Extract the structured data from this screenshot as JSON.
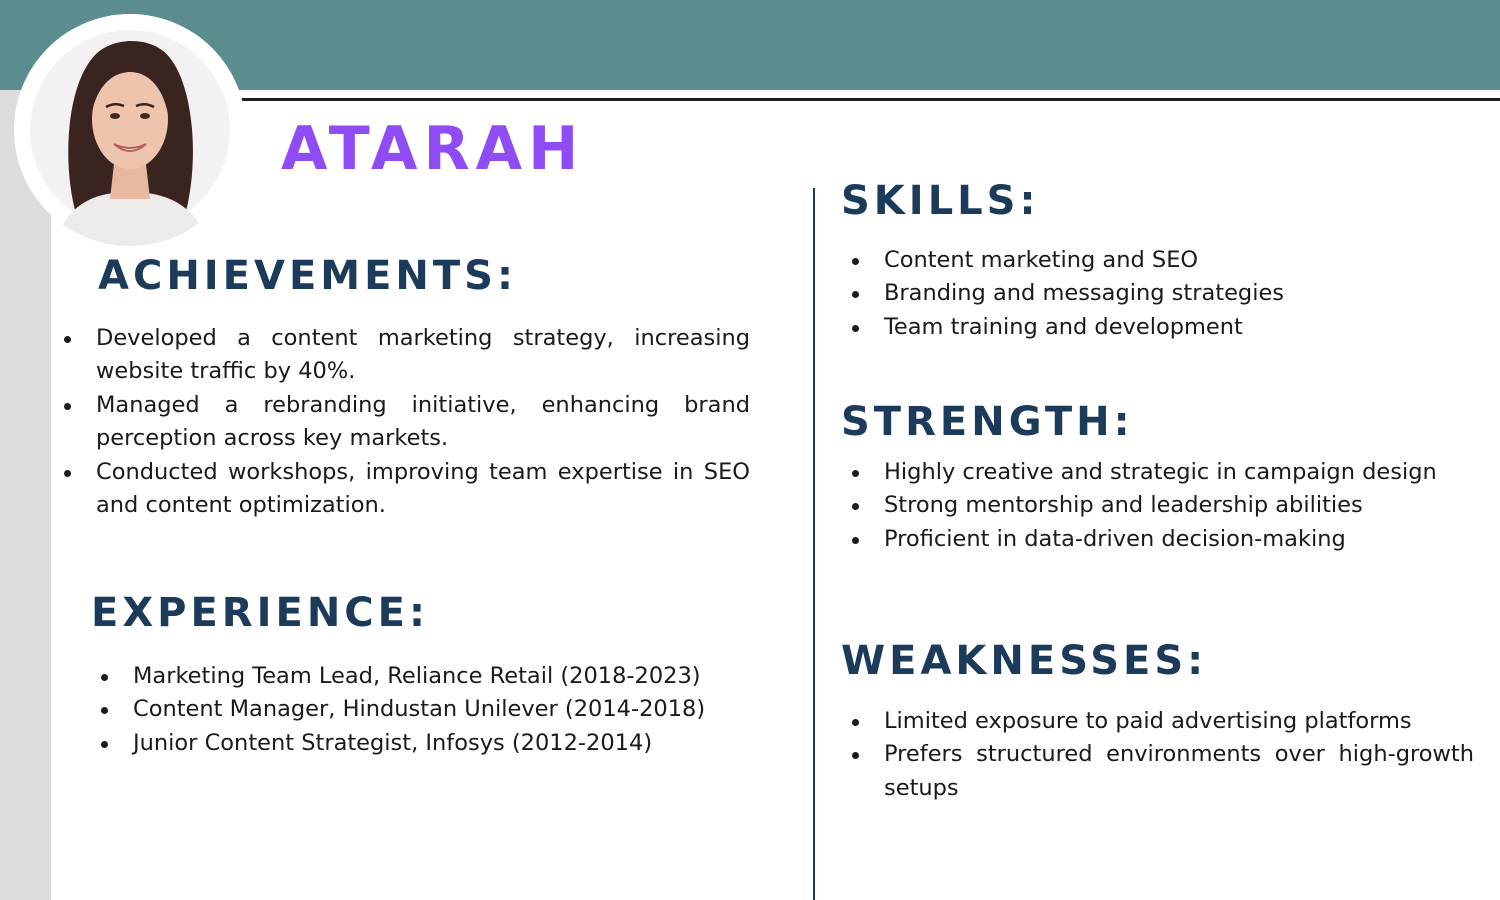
{
  "profile": {
    "name": "ATARAH"
  },
  "achievements": {
    "heading": "ACHIEVEMENTS:",
    "items": [
      "Developed a content marketing strategy, increasing website traffic by 40%.",
      "Managed a rebranding initiative, enhancing brand perception across key markets.",
      "Conducted workshops, improving team expertise in SEO and content optimization."
    ]
  },
  "experience": {
    "heading": "EXPERIENCE:",
    "items": [
      "Marketing Team Lead, Reliance Retail (2018-2023)",
      "Content Manager, Hindustan Unilever (2014-2018)",
      "Junior Content Strategist, Infosys (2012-2014)"
    ]
  },
  "skills": {
    "heading": "SKILLS:",
    "items": [
      "Content marketing and SEO",
      "Branding and messaging strategies",
      "Team training and development"
    ]
  },
  "strength": {
    "heading": "STRENGTH:",
    "items": [
      "Highly creative and strategic in campaign design",
      "Strong mentorship and leadership abilities",
      "Proficient in data-driven decision-making"
    ]
  },
  "weaknesses": {
    "heading": "WEAKNESSES:",
    "items": [
      "Limited exposure to paid advertising platforms",
      "Prefers structured environments over high-growth setups"
    ]
  },
  "colors": {
    "top_band": "#5b8d8e",
    "name_accent": "#8f4cf4",
    "heading": "#1c3a5a",
    "left_strip": "#dcdcdc"
  },
  "icons": {
    "avatar": "profile-photo-icon"
  }
}
